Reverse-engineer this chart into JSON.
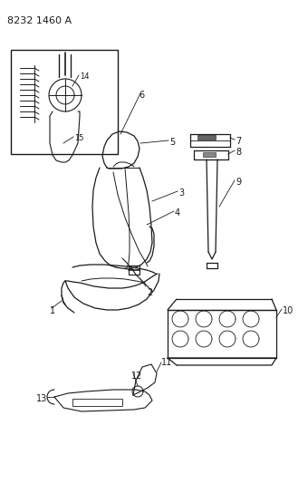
{
  "title": "8232 1460 A",
  "bg_color": "#ffffff",
  "line_color": "#1a1a1a",
  "title_fontsize": 8,
  "label_fontsize": 7,
  "figsize": [
    3.4,
    5.33
  ],
  "dpi": 100
}
